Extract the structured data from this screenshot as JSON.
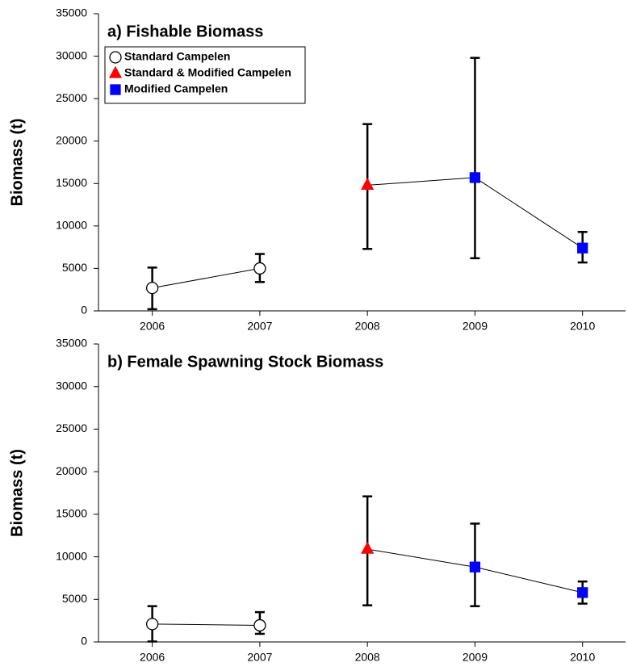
{
  "chart_data": [
    {
      "type": "errorline",
      "title": "a) Fishable Biomass",
      "ylabel": "Biomass (t)",
      "xlim": [
        2005.5,
        2010.4
      ],
      "xticks": [
        2006,
        2007,
        2008,
        2009,
        2010
      ],
      "ylim": [
        0,
        35000
      ],
      "yticks": [
        0,
        5000,
        10000,
        15000,
        20000,
        25000,
        30000,
        35000
      ],
      "legend": "upper left",
      "series": [
        {
          "name": "Standard Campelen",
          "marker": "circle",
          "color": "#ffffff",
          "x": [
            2006,
            2007
          ],
          "values": [
            2700,
            5000
          ],
          "lower": [
            200,
            3400
          ],
          "upper": [
            5100,
            6700
          ]
        },
        {
          "name": "Standard & Modified Campelen",
          "marker": "triangle",
          "color": "#ff0000",
          "x": [
            2008
          ],
          "values": [
            14800
          ],
          "lower": [
            7300
          ],
          "upper": [
            22000
          ]
        },
        {
          "name": "Modified Campelen",
          "marker": "square",
          "color": "#0000ff",
          "joins_previous": true,
          "x": [
            2009,
            2010
          ],
          "values": [
            15700,
            7400
          ],
          "lower": [
            6200,
            5700
          ],
          "upper": [
            29800,
            9300
          ]
        }
      ]
    },
    {
      "type": "errorline",
      "title": "b) Female Spawning Stock Biomass",
      "ylabel": "Biomass (t)",
      "xlim": [
        2005.5,
        2010.4
      ],
      "xticks": [
        2006,
        2007,
        2008,
        2009,
        2010
      ],
      "ylim": [
        0,
        35000
      ],
      "yticks": [
        0,
        5000,
        10000,
        15000,
        20000,
        25000,
        30000,
        35000
      ],
      "series": [
        {
          "marker": "circle",
          "color": "#ffffff",
          "x": [
            2006,
            2007
          ],
          "values": [
            2100,
            1950
          ],
          "lower": [
            50,
            950
          ],
          "upper": [
            4200,
            3500
          ]
        },
        {
          "marker": "triangle",
          "color": "#ff0000",
          "x": [
            2008
          ],
          "values": [
            10900
          ],
          "lower": [
            4300
          ],
          "upper": [
            17100
          ]
        },
        {
          "marker": "square",
          "color": "#0000ff",
          "joins_previous": true,
          "x": [
            2009,
            2010
          ],
          "values": [
            8800,
            5800
          ],
          "lower": [
            4200,
            4500
          ],
          "upper": [
            13900,
            7100
          ]
        }
      ]
    }
  ]
}
